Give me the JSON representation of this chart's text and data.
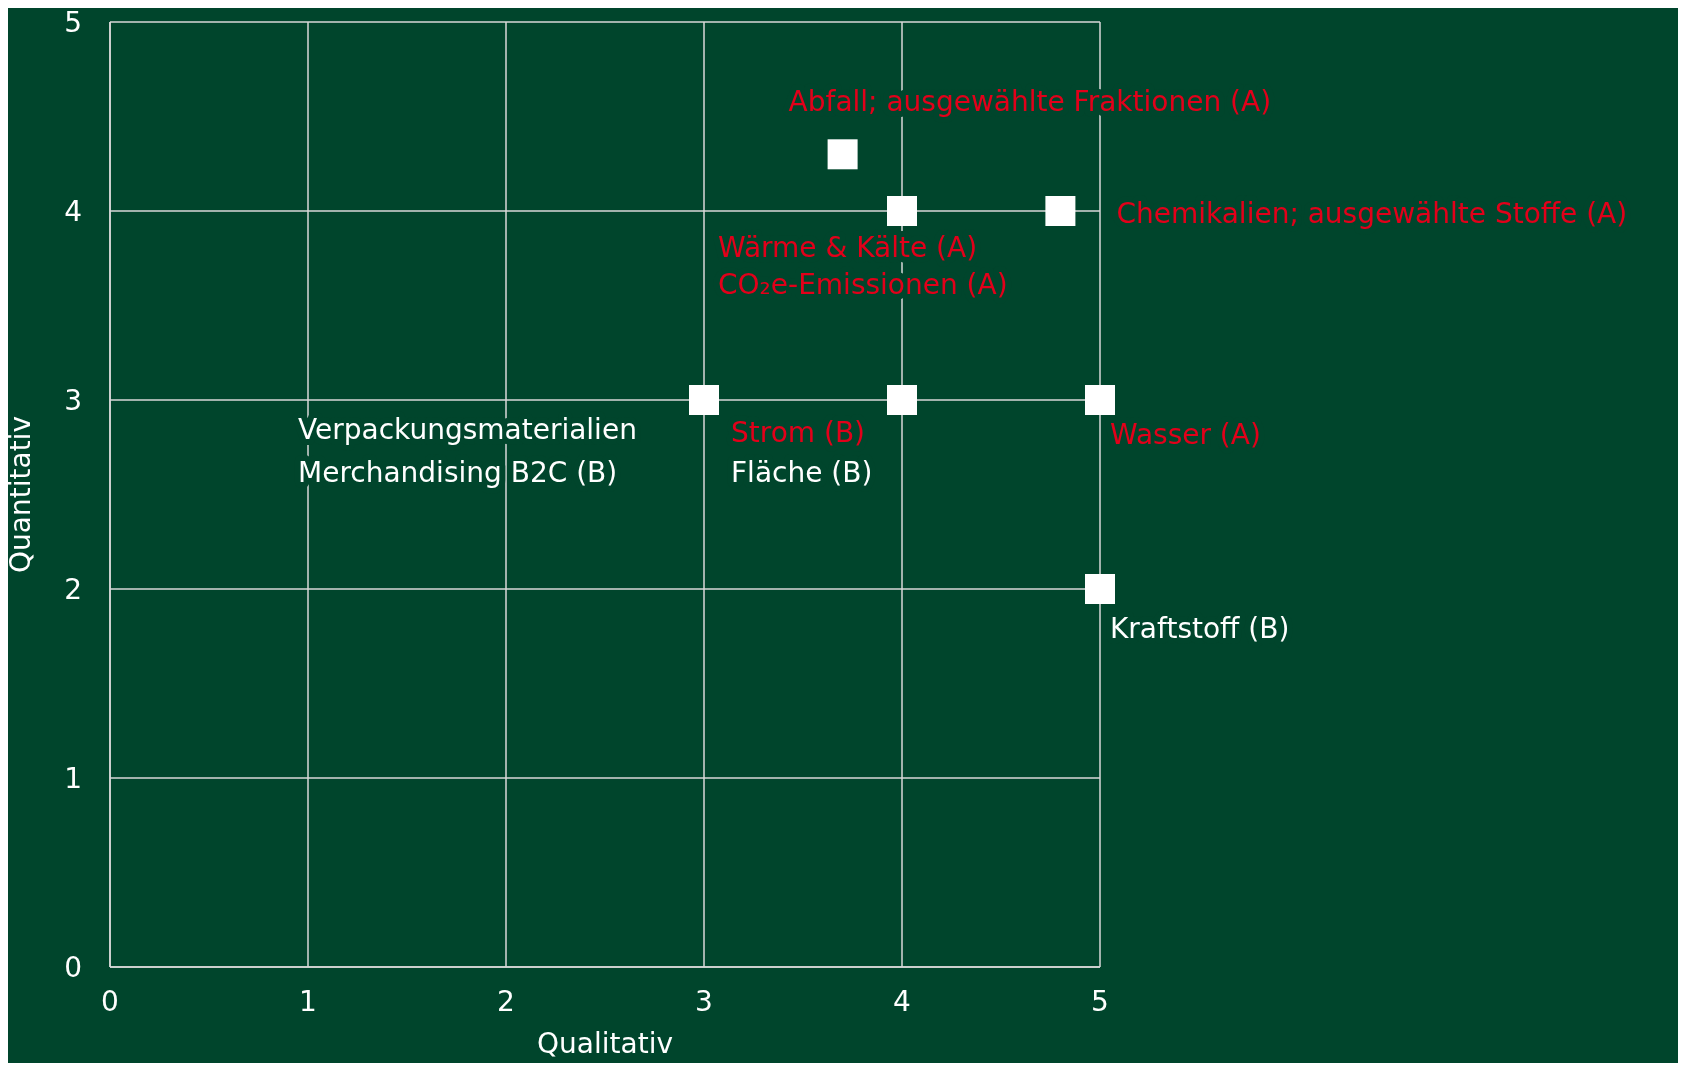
{
  "chart_data": {
    "type": "scatter",
    "xlabel": "Qualitativ",
    "ylabel": "Quantitativ",
    "x": [
      3.7,
      4,
      4.8,
      3,
      4,
      5,
      5
    ],
    "values": [
      4.3,
      4,
      4,
      3,
      3,
      3,
      2
    ],
    "color": "#ffffff",
    "marker": "square",
    "xlim": [
      0,
      5
    ],
    "ylim": [
      0,
      5
    ],
    "xticks": [
      0,
      1,
      2,
      3,
      4,
      5
    ],
    "yticks": [
      0,
      1,
      2,
      3,
      4,
      5
    ],
    "grid": true,
    "legend": false,
    "annotations": [
      {
        "text": "Abfall; ausgewählte Fraktionen (A)",
        "x": 3.7,
        "y": 4.3
      },
      {
        "text": "Wärme & Kälte (A)",
        "x": 4,
        "y": 4
      },
      {
        "text": "CO₂e-Emissionen (A)",
        "x": 4,
        "y": 4
      },
      {
        "text": "Chemikalien; ausgewählte Stoffe (A)",
        "x": 4.8,
        "y": 4
      },
      {
        "text": "Verpackungsmaterialien",
        "x": 3,
        "y": 3
      },
      "Merchandising B2C (B)",
      {
        "text": "Strom (B)",
        "x": 4,
        "y": 3
      },
      {
        "text": "Fläche (B)",
        "x": 4,
        "y": 3
      },
      {
        "text": "Wasser (A)",
        "x": 5,
        "y": 3
      },
      {
        "text": "Kraftstoff (B)",
        "x": 5,
        "y": 2
      }
    ]
  }
}
